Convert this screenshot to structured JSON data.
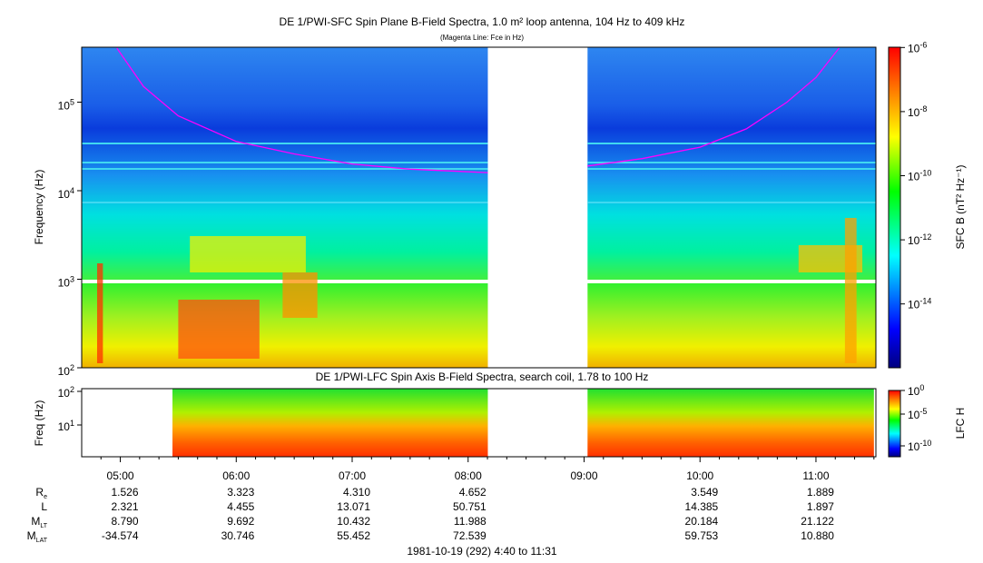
{
  "chart_data": [
    {
      "type": "heatmap",
      "title": "DE 1/PWI-SFC  Spin Plane B-Field Spectra, 1.0 m² loop antenna, 104 Hz to 409 kHz",
      "subtitle": "(Magenta Line: Fce in Hz)",
      "ylabel": "Frequency (Hz)",
      "yscale": "log",
      "ylim_hz": [
        100,
        409000
      ],
      "yticks": [
        {
          "v": 2,
          "label": "10",
          "exp": "2"
        },
        {
          "v": 3,
          "label": "10",
          "exp": "3"
        },
        {
          "v": 4,
          "label": "10",
          "exp": "4"
        },
        {
          "v": 5,
          "label": "10",
          "exp": "5"
        }
      ],
      "colorbar_label": "SFC B (nT² Hz⁻¹)",
      "colorbar_range_log": [
        -15,
        -5
      ],
      "colorbar_ticks": [
        {
          "v": -6,
          "label": "10",
          "exp": "-6"
        },
        {
          "v": -8,
          "label": "10",
          "exp": "-8"
        },
        {
          "v": -10,
          "label": "10",
          "exp": "-10"
        },
        {
          "v": -12,
          "label": "10",
          "exp": "-12"
        },
        {
          "v": -14,
          "label": "10",
          "exp": "-14"
        }
      ],
      "data_gap_hours": [
        8.17,
        9.03
      ],
      "fce_curve": [
        [
          4.97,
          409000
        ],
        [
          5.2,
          150000
        ],
        [
          5.5,
          70000
        ],
        [
          6.0,
          36000
        ],
        [
          6.5,
          26000
        ],
        [
          7.0,
          20000
        ],
        [
          7.5,
          17500
        ],
        [
          8.17,
          16000
        ],
        [
          9.03,
          19000
        ],
        [
          9.5,
          23000
        ],
        [
          10.0,
          31000
        ],
        [
          10.4,
          50000
        ],
        [
          10.75,
          100000
        ],
        [
          11.0,
          190000
        ],
        [
          11.2,
          409000
        ]
      ]
    },
    {
      "type": "heatmap",
      "title": "DE 1/PWI-LFC  Spin Axis B-Field Spectra, search coil, 1.78 to 100 Hz",
      "ylabel": "Freq (Hz)",
      "yscale": "log",
      "ylim_hz": [
        1.78,
        100
      ],
      "yticks": [
        {
          "v": 1,
          "label": "10",
          "exp": "1"
        },
        {
          "v": 2,
          "label": "10",
          "exp": "2"
        }
      ],
      "colorbar_label": "LFC H",
      "colorbar_range_log": [
        -12,
        0
      ],
      "colorbar_ticks": [
        {
          "v": 0,
          "label": "10",
          "exp": "0"
        },
        {
          "v": -5,
          "label": "10",
          "exp": "-5"
        },
        {
          "v": -10,
          "label": "10",
          "exp": "-10"
        }
      ],
      "data_ranges_hours": [
        [
          5.45,
          8.17
        ],
        [
          9.03,
          11.5
        ]
      ]
    }
  ],
  "time_axis": {
    "start_hours": 4.667,
    "end_hours": 11.517,
    "ticks": [
      {
        "h": 5,
        "label": "05:00"
      },
      {
        "h": 6,
        "label": "06:00"
      },
      {
        "h": 7,
        "label": "07:00"
      },
      {
        "h": 8,
        "label": "08:00"
      },
      {
        "h": 9,
        "label": "09:00"
      },
      {
        "h": 10,
        "label": "10:00"
      },
      {
        "h": 11,
        "label": "11:00"
      }
    ],
    "caption": "1981-10-19 (292) 4:40 to 11:31"
  },
  "ephemeris": {
    "rows": [
      {
        "label": "R",
        "sub": "e",
        "values": [
          "1.526",
          "3.323",
          "4.310",
          "4.652",
          "",
          "3.549",
          "1.889"
        ]
      },
      {
        "label": "L",
        "sub": "",
        "values": [
          "2.321",
          "4.455",
          "13.071",
          "50.751",
          "",
          "14.385",
          "1.897"
        ]
      },
      {
        "label": "M",
        "sub": "LT",
        "values": [
          "8.790",
          "9.692",
          "10.432",
          "11.988",
          "",
          "20.184",
          "21.122"
        ]
      },
      {
        "label": "M",
        "sub": "LAT",
        "values": [
          "-34.574",
          "30.746",
          "55.452",
          "72.539",
          "",
          "59.753",
          "10.880"
        ]
      }
    ]
  },
  "colors": {
    "fce": "#ff00ff"
  }
}
